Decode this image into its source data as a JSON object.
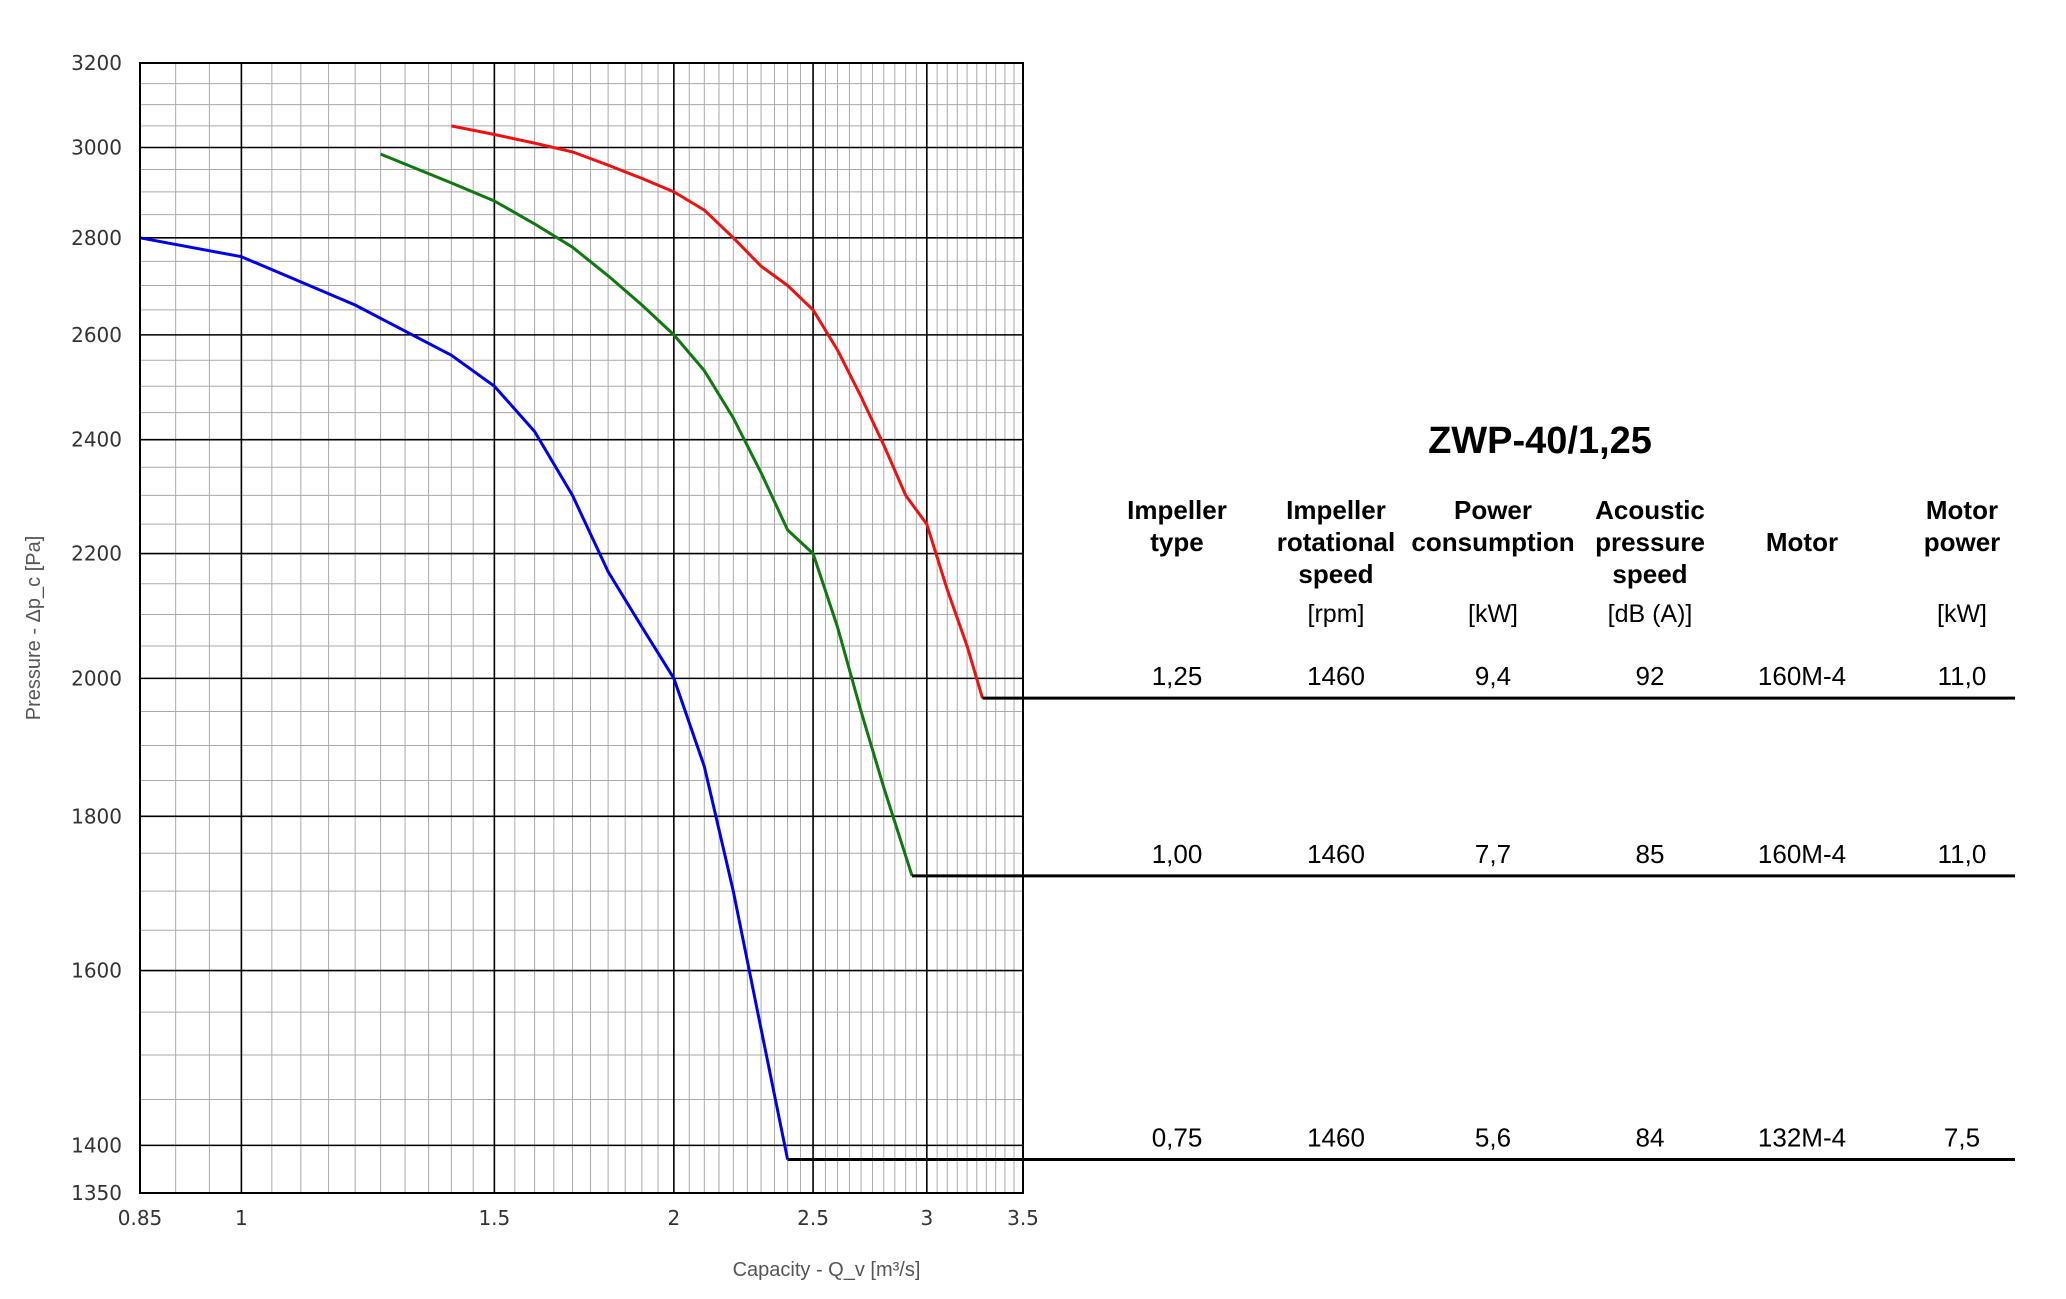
{
  "chart_data": {
    "type": "line",
    "title": "",
    "xlabel": "Capacity - Q_v [m³/s]",
    "ylabel": "Pressure - Δp_c [Pa]",
    "x_scale": "log",
    "y_scale": "log",
    "xlim": [
      0.85,
      3.5
    ],
    "ylim": [
      1350,
      3200
    ],
    "x_ticks": [
      0.85,
      1,
      1.5,
      2,
      2.5,
      3,
      3.5
    ],
    "x_tick_labels": [
      "0.85",
      "1",
      "1.5",
      "2",
      "2.5",
      "3",
      "3.5"
    ],
    "y_ticks": [
      1350,
      1400,
      1600,
      1800,
      2000,
      2200,
      2400,
      2600,
      2800,
      3000,
      3200
    ],
    "y_tick_labels": [
      "1350",
      "1400",
      "1600",
      "1800",
      "2000",
      "2200",
      "2400",
      "2600",
      "2800",
      "3000",
      "3200"
    ],
    "grid": true,
    "series": [
      {
        "color": "#0000e6",
        "points": [
          [
            0.85,
            2800
          ],
          [
            1.0,
            2760
          ],
          [
            1.2,
            2660
          ],
          [
            1.4,
            2560
          ],
          [
            1.5,
            2500
          ],
          [
            1.6,
            2415
          ],
          [
            1.7,
            2300
          ],
          [
            1.8,
            2170
          ],
          [
            1.9,
            2080
          ],
          [
            2.0,
            2000
          ],
          [
            2.1,
            1870
          ],
          [
            2.2,
            1700
          ],
          [
            2.3,
            1530
          ],
          [
            2.4,
            1385
          ]
        ]
      },
      {
        "color": "#117711",
        "points": [
          [
            1.25,
            2985
          ],
          [
            1.4,
            2920
          ],
          [
            1.5,
            2880
          ],
          [
            1.6,
            2830
          ],
          [
            1.7,
            2780
          ],
          [
            1.8,
            2720
          ],
          [
            1.9,
            2660
          ],
          [
            2.0,
            2600
          ],
          [
            2.1,
            2530
          ],
          [
            2.2,
            2440
          ],
          [
            2.3,
            2340
          ],
          [
            2.4,
            2240
          ],
          [
            2.5,
            2200
          ],
          [
            2.6,
            2080
          ],
          [
            2.7,
            1950
          ],
          [
            2.8,
            1840
          ],
          [
            2.93,
            1720
          ]
        ]
      },
      {
        "color": "#ee1111",
        "points": [
          [
            1.4,
            3050
          ],
          [
            1.5,
            3030
          ],
          [
            1.6,
            3010
          ],
          [
            1.7,
            2990
          ],
          [
            1.8,
            2960
          ],
          [
            1.9,
            2930
          ],
          [
            2.0,
            2900
          ],
          [
            2.1,
            2860
          ],
          [
            2.2,
            2800
          ],
          [
            2.3,
            2740
          ],
          [
            2.4,
            2700
          ],
          [
            2.5,
            2650
          ],
          [
            2.6,
            2570
          ],
          [
            2.7,
            2480
          ],
          [
            2.8,
            2390
          ],
          [
            2.9,
            2300
          ],
          [
            3.0,
            2250
          ],
          [
            3.1,
            2140
          ],
          [
            3.2,
            2050
          ],
          [
            3.28,
            1970
          ]
        ]
      }
    ]
  },
  "table": {
    "title": "ZWP-40/1,25",
    "columns": [
      {
        "header": [
          "Impeller",
          "type"
        ],
        "unit": ""
      },
      {
        "header": [
          "Impeller",
          "rotational",
          "speed"
        ],
        "unit": "[rpm]"
      },
      {
        "header": [
          "Power",
          "consumption"
        ],
        "unit": "[kW]"
      },
      {
        "header": [
          "Acoustic",
          "pressure",
          "speed"
        ],
        "unit": "[dB (A)]"
      },
      {
        "header": [
          "Motor"
        ],
        "unit": ""
      },
      {
        "header": [
          "Motor",
          "power"
        ],
        "unit": "[kW]"
      }
    ],
    "rows": [
      {
        "color": "#ee1111",
        "line_pressure": 1970,
        "line_capacity": 3.28,
        "values": [
          "1,25",
          "1460",
          "9,4",
          "92",
          "160M-4",
          "11,0"
        ]
      },
      {
        "color": "#117711",
        "line_pressure": 1720,
        "line_capacity": 2.93,
        "values": [
          "1,00",
          "1460",
          "7,7",
          "85",
          "160M-4",
          "11,0"
        ]
      },
      {
        "color": "#0000e6",
        "line_pressure": 1385,
        "line_capacity": 2.4,
        "values": [
          "0,75",
          "1460",
          "5,6",
          "84",
          "132M-4",
          "7,5"
        ]
      }
    ]
  }
}
